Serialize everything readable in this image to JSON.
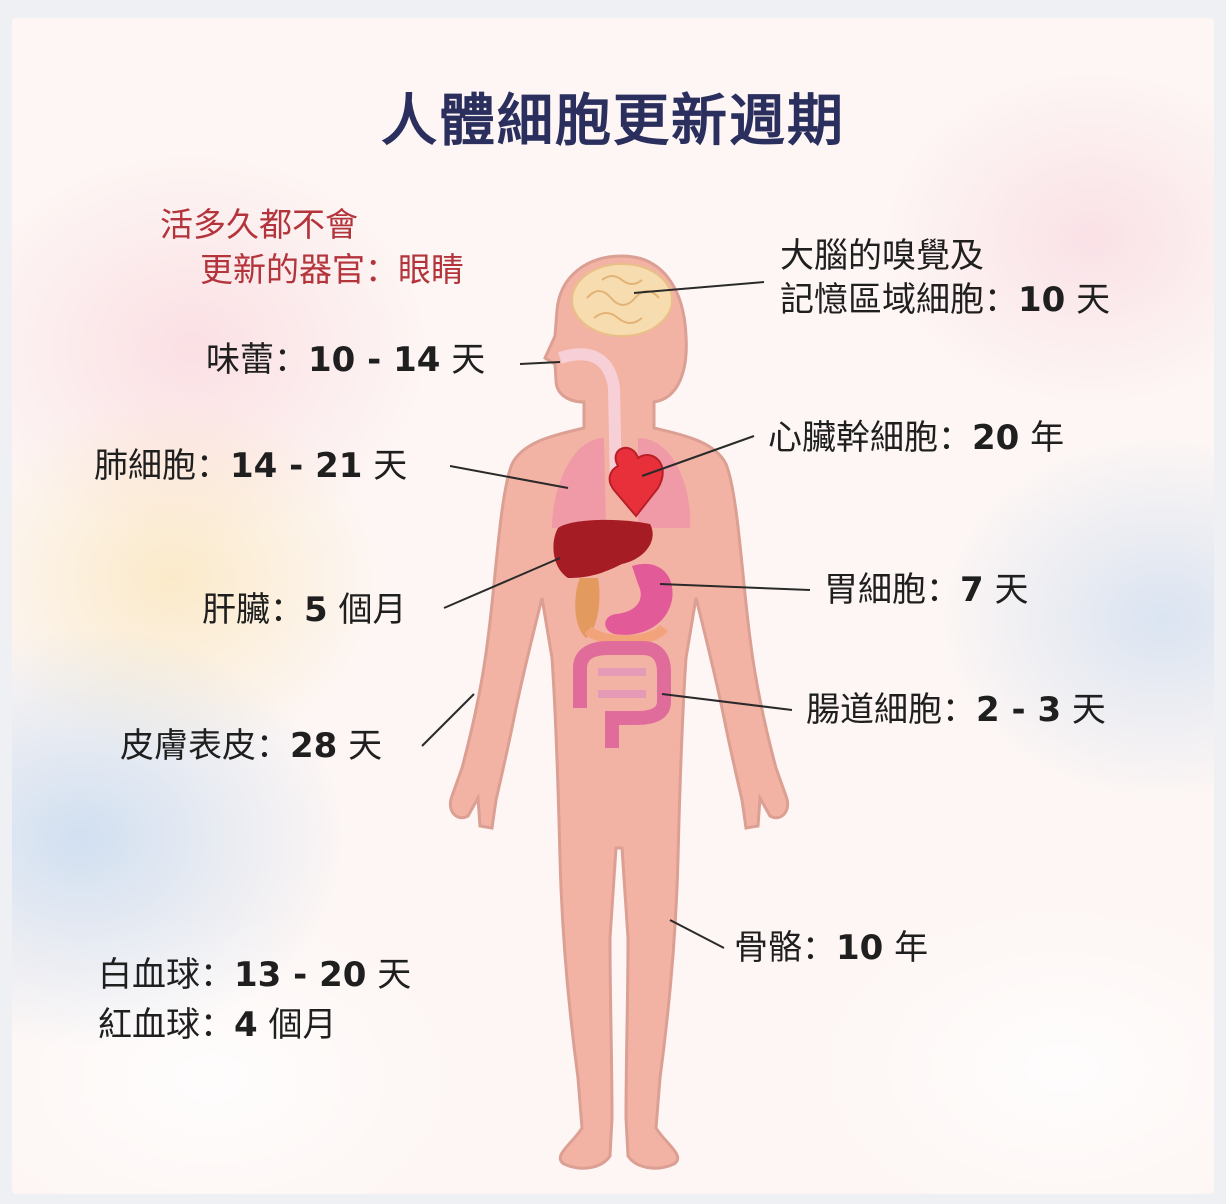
{
  "title": "人體細胞更新週期",
  "note": {
    "line1": "活多久都不會",
    "line2": "更新的器官：眼睛"
  },
  "labels": {
    "brain_line1": "大腦的嗅覺及",
    "brain_name": "記憶區域細胞：",
    "brain_value": "10",
    "brain_unit": " 天",
    "taste_name": "味蕾：",
    "taste_value": "10 - 14",
    "taste_unit": " 天",
    "heart_name": "心臟幹細胞：",
    "heart_value": "20",
    "heart_unit": " 年",
    "lung_name": "肺細胞：",
    "lung_value": "14 - 21",
    "lung_unit": " 天",
    "stomach_name": "胃細胞：",
    "stomach_value": "7",
    "stomach_unit": " 天",
    "liver_name": "肝臟：",
    "liver_value": "5",
    "liver_unit": " 個月",
    "intestine_name": "腸道細胞：",
    "intestine_value": "2 - 3",
    "intestine_unit": " 天",
    "skin_name": "皮膚表皮：",
    "skin_value": "28",
    "skin_unit": " 天",
    "bone_name": "骨骼：",
    "bone_value": "10",
    "bone_unit": " 年",
    "wbc_name": "白血球：",
    "wbc_value": "13 - 20",
    "wbc_unit": " 天",
    "rbc_name": "紅血球：",
    "rbc_value": "4",
    "rbc_unit": " 個月"
  },
  "colors": {
    "title": "#2b2f5e",
    "note": "#b3343b",
    "body": "#f3b3a4",
    "body_shadow": "#dc9f93"
  }
}
